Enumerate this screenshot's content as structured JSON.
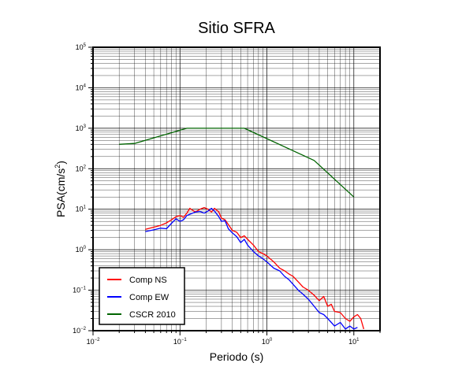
{
  "chart_data": {
    "type": "line",
    "title": "Sitio SFRA",
    "xlabel": "Periodo (s)",
    "ylabel_base": "PSA(cm/s",
    "ylabel_sup": "2",
    "ylabel_end": ")",
    "xscale": "log",
    "yscale": "log",
    "xlim": [
      0.01,
      20
    ],
    "ylim": [
      0.01,
      100000
    ],
    "grid": true,
    "legend_position": "bottom-left",
    "x_tick_labels": [
      {
        "base": "10",
        "exp": "−2",
        "value": 0.01
      },
      {
        "base": "10",
        "exp": "−1",
        "value": 0.1
      },
      {
        "base": "10",
        "exp": "0",
        "value": 1
      },
      {
        "base": "10",
        "exp": "1",
        "value": 10
      }
    ],
    "y_tick_labels": [
      {
        "base": "10",
        "exp": "−2",
        "value": 0.01
      },
      {
        "base": "10",
        "exp": "−1",
        "value": 0.1
      },
      {
        "base": "10",
        "exp": "0",
        "value": 1
      },
      {
        "base": "10",
        "exp": "1",
        "value": 10
      },
      {
        "base": "10",
        "exp": "2",
        "value": 100
      },
      {
        "base": "10",
        "exp": "3",
        "value": 1000
      },
      {
        "base": "10",
        "exp": "4",
        "value": 10000
      },
      {
        "base": "10",
        "exp": "5",
        "value": 100000
      }
    ],
    "series": [
      {
        "name": "Comp NS",
        "color": "#ff0000",
        "x": [
          0.04,
          0.05,
          0.06,
          0.07,
          0.08,
          0.09,
          0.1,
          0.11,
          0.12,
          0.13,
          0.15,
          0.17,
          0.19,
          0.21,
          0.23,
          0.25,
          0.28,
          0.3,
          0.33,
          0.36,
          0.4,
          0.45,
          0.5,
          0.55,
          0.6,
          0.7,
          0.8,
          0.9,
          1.0,
          1.2,
          1.4,
          1.6,
          1.8,
          2.0,
          2.3,
          2.6,
          3.0,
          3.5,
          4.0,
          4.5,
          5.0,
          5.5,
          6.0,
          7.0,
          8.0,
          9.0,
          10.0,
          11.0,
          12.0,
          13.0
        ],
        "y": [
          3.2,
          3.6,
          4.0,
          4.6,
          5.5,
          6.5,
          7.0,
          6.3,
          8.0,
          10.5,
          8.5,
          10.0,
          11.0,
          10.0,
          8.5,
          10.5,
          8.5,
          6.0,
          5.5,
          4.2,
          3.0,
          2.7,
          2.0,
          2.2,
          1.8,
          1.3,
          0.9,
          0.8,
          0.7,
          0.5,
          0.35,
          0.3,
          0.25,
          0.22,
          0.16,
          0.12,
          0.1,
          0.075,
          0.055,
          0.07,
          0.04,
          0.045,
          0.03,
          0.028,
          0.02,
          0.017,
          0.022,
          0.025,
          0.02,
          0.011
        ]
      },
      {
        "name": "Comp EW",
        "color": "#0000ff",
        "x": [
          0.04,
          0.05,
          0.06,
          0.07,
          0.08,
          0.09,
          0.1,
          0.11,
          0.12,
          0.13,
          0.15,
          0.17,
          0.19,
          0.21,
          0.23,
          0.25,
          0.28,
          0.3,
          0.33,
          0.36,
          0.4,
          0.45,
          0.5,
          0.55,
          0.6,
          0.7,
          0.8,
          0.9,
          1.0,
          1.2,
          1.4,
          1.6,
          1.8,
          2.0,
          2.3,
          2.6,
          3.0,
          3.5,
          4.0,
          4.5,
          5.0,
          5.5,
          6.0,
          7.0,
          8.0,
          9.0,
          10.0,
          11.0
        ],
        "y": [
          2.8,
          3.1,
          3.4,
          3.3,
          4.5,
          5.8,
          5.0,
          5.5,
          7.0,
          7.5,
          8.5,
          8.8,
          8.0,
          9.0,
          10.5,
          9.0,
          6.5,
          5.0,
          5.2,
          3.3,
          2.6,
          2.1,
          1.5,
          1.8,
          1.3,
          0.9,
          0.7,
          0.6,
          0.5,
          0.35,
          0.3,
          0.22,
          0.18,
          0.14,
          0.1,
          0.08,
          0.06,
          0.04,
          0.028,
          0.025,
          0.02,
          0.016,
          0.013,
          0.016,
          0.011,
          0.013,
          0.011,
          0.012
        ]
      },
      {
        "name": "CSCR 2010",
        "color": "#006400",
        "x": [
          0.02,
          0.03,
          0.12,
          0.55,
          3.5,
          10.0
        ],
        "y": [
          400,
          420,
          1000,
          1000,
          160,
          20
        ]
      }
    ]
  }
}
